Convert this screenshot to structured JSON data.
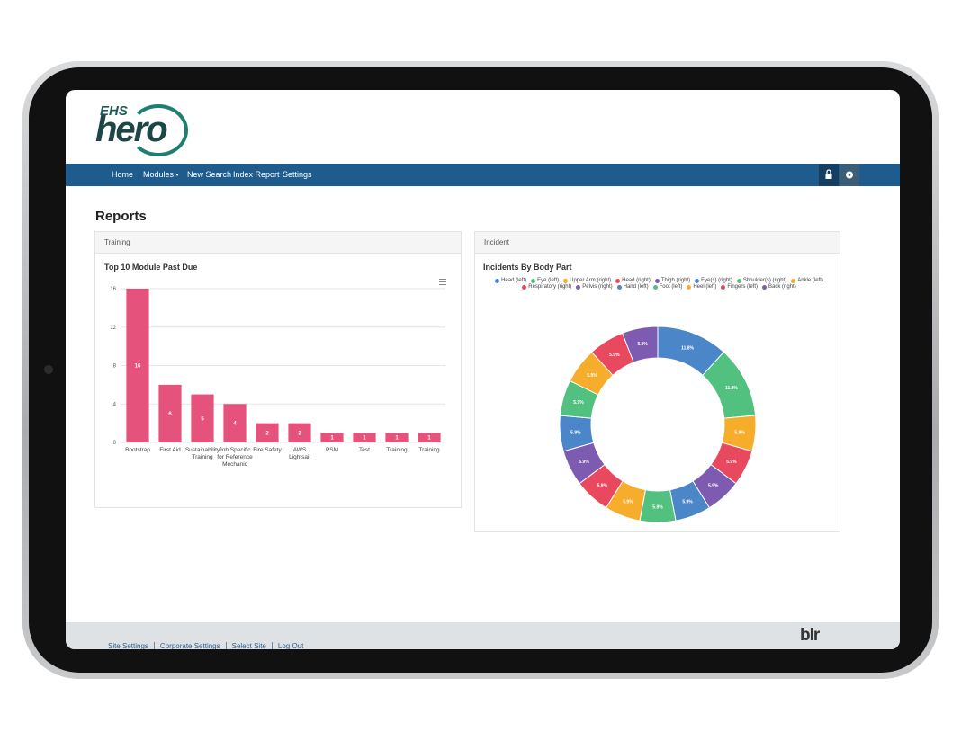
{
  "header": {
    "logo": {
      "top": "EHS",
      "bottom": "hero"
    }
  },
  "nav": {
    "items": [
      "Home",
      "Modules",
      "New Search",
      "Index Report",
      "Settings"
    ]
  },
  "page": {
    "title": "Reports"
  },
  "panels": [
    {
      "heading": "Training"
    },
    {
      "heading": "Incident"
    }
  ],
  "chart_data": [
    {
      "type": "bar",
      "title": "Top 10 Module Past Due",
      "categories": [
        "Bootstrap",
        "First Aid",
        "Sustainability Training",
        "Job Specific for Reference Mechanic",
        "Fire Safety",
        "AWS Lightsail",
        "PSM",
        "Test",
        "Training",
        "Training"
      ],
      "values": [
        16,
        6,
        5,
        4,
        2,
        2,
        1,
        1,
        1,
        1
      ],
      "color": "#e5527b",
      "ylim": [
        0,
        16
      ],
      "yticks": [
        0,
        4,
        8,
        12,
        16
      ],
      "grid": true
    },
    {
      "type": "pie",
      "title": "Incidents By Body Part",
      "labels": [
        "Head (left)",
        "Eye (left)",
        "Upper Arm (right)",
        "Head (right)",
        "Thigh (right)",
        "Eye(s) (right)",
        "Shoulder(s) (right)",
        "Ankle (left)",
        "Respiratory (right)",
        "Pelvis (right)",
        "Hand (left)",
        "Foot (left)",
        "Heel (left)",
        "Fingers (left)",
        "Back (right)"
      ],
      "values": [
        11.8,
        11.8,
        5.9,
        5.9,
        5.9,
        5.9,
        5.9,
        5.9,
        5.9,
        5.9,
        5.9,
        5.9,
        5.9,
        5.9,
        5.9
      ],
      "value_labels": [
        "11.8%",
        "11.8%",
        "5.9%",
        "5.9%",
        "5.9%",
        "5.9%",
        "5.9%",
        "5.9%",
        "5.9%",
        "5.9%",
        "5.9%",
        "5.9%",
        "5.9%",
        "5.9%",
        "5.9%"
      ],
      "colors": [
        "#4a86c8",
        "#52c07f",
        "#f6ad2b",
        "#e9495f",
        "#7d5bb0",
        "#4a86c8",
        "#52c07f",
        "#f6ad2b",
        "#e9495f",
        "#7d5bb0",
        "#4a86c8",
        "#52c07f",
        "#f6ad2b",
        "#e9495f",
        "#7d5bb0"
      ],
      "hole": true,
      "legend": "top"
    }
  ],
  "footer": {
    "links": [
      "Site Settings",
      "Corporate Settings",
      "Select Site",
      "Log Out"
    ],
    "brand": "blr"
  }
}
